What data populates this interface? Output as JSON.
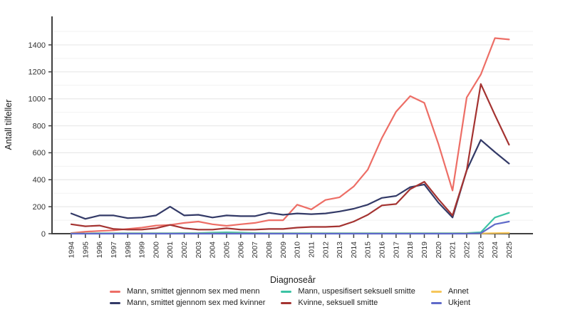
{
  "chart_data": {
    "type": "line",
    "title": "",
    "xlabel": "Diagnoseår",
    "ylabel": "Antall tilfeller",
    "x": [
      1994,
      1995,
      1996,
      1997,
      1998,
      1999,
      2000,
      2001,
      2002,
      2003,
      2004,
      2005,
      2006,
      2007,
      2008,
      2009,
      2010,
      2011,
      2012,
      2013,
      2014,
      2015,
      2016,
      2017,
      2018,
      2019,
      2020,
      2021,
      2022,
      2023,
      2024,
      2025
    ],
    "y_ticks": [
      0,
      200,
      400,
      600,
      800,
      1000,
      1200,
      1400
    ],
    "ylim": [
      0,
      1560
    ],
    "grid": true,
    "legend_position": "bottom",
    "axis_color": "#404040",
    "major_grid_color": "#e4e4e4",
    "minor_grid_color": "#f2f2f2",
    "tick_label_color": "#333333",
    "series": [
      {
        "name": "Mann, smittet gjennom sex med menn",
        "color": "#ed6e66",
        "values": [
          5,
          15,
          20,
          25,
          35,
          45,
          60,
          65,
          80,
          90,
          70,
          58,
          70,
          80,
          100,
          100,
          215,
          180,
          250,
          270,
          350,
          475,
          710,
          905,
          1020,
          970,
          665,
          320,
          1010,
          1180,
          1450,
          1440
        ]
      },
      {
        "name": "Mann, smittet gjennom sex med kvinner",
        "color": "#333a67",
        "values": [
          150,
          110,
          135,
          135,
          115,
          120,
          135,
          200,
          135,
          140,
          120,
          135,
          130,
          130,
          155,
          140,
          150,
          145,
          150,
          165,
          185,
          215,
          265,
          280,
          345,
          365,
          230,
          120,
          470,
          695,
          605,
          520
        ]
      },
      {
        "name": "Mann, uspesifisert seksuell smitte",
        "color": "#3cc3a4",
        "values": [
          2,
          2,
          3,
          3,
          3,
          3,
          3,
          3,
          4,
          5,
          8,
          10,
          8,
          5,
          3,
          3,
          3,
          3,
          3,
          3,
          3,
          3,
          3,
          3,
          3,
          3,
          3,
          3,
          5,
          10,
          120,
          155
        ]
      },
      {
        "name": "Kvinne, seksuell smitte",
        "color": "#a43331",
        "values": [
          70,
          55,
          60,
          35,
          30,
          30,
          40,
          65,
          40,
          30,
          30,
          40,
          30,
          30,
          35,
          35,
          45,
          50,
          50,
          55,
          90,
          140,
          210,
          220,
          330,
          385,
          255,
          135,
          470,
          1110,
          880,
          660
        ]
      },
      {
        "name": "Annet",
        "color": "#f6c65b",
        "values": [
          1,
          1,
          1,
          1,
          1,
          1,
          1,
          1,
          1,
          1,
          1,
          1,
          1,
          1,
          1,
          1,
          1,
          1,
          1,
          1,
          1,
          1,
          1,
          1,
          1,
          1,
          1,
          1,
          2,
          2,
          4,
          6
        ]
      },
      {
        "name": "Ukjent",
        "color": "#5f6ac9",
        "values": [
          0,
          0,
          0,
          0,
          0,
          0,
          0,
          0,
          0,
          0,
          0,
          0,
          0,
          0,
          0,
          0,
          0,
          0,
          0,
          0,
          0,
          0,
          0,
          0,
          0,
          0,
          0,
          0,
          0,
          3,
          70,
          90
        ]
      }
    ]
  }
}
